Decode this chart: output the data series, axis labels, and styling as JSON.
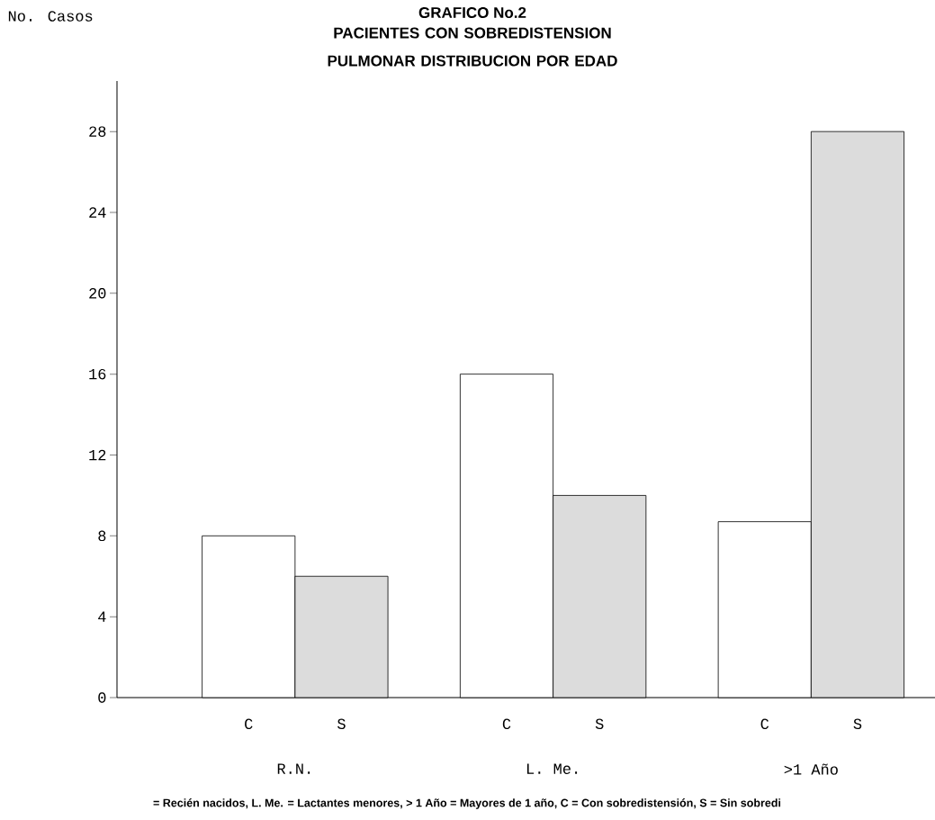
{
  "chart_data": {
    "type": "bar",
    "title": "GRAFICO No.2",
    "subtitle": "PACIENTES CON SOBREDISTENSION PULMONAR DISTRIBUCION POR EDAD",
    "ylabel": "No. Casos",
    "categories": [
      "R.N.",
      "L. Me.",
      ">1 Año"
    ],
    "series": [
      {
        "name": "C",
        "color": "#ffffff",
        "values": [
          8,
          16,
          8.7
        ]
      },
      {
        "name": "S",
        "color": "#dcdcdc",
        "values": [
          6,
          10,
          28
        ]
      }
    ],
    "ylim": [
      0,
      30.5
    ],
    "yticks": [
      0,
      4,
      8,
      12,
      16,
      20,
      24,
      28
    ],
    "grid": false,
    "annotations": [
      "= Recién nacidos, L. Me. = Lactantes menores, > 1 Año = Mayores de 1 año, C = Con sobredistensión, S = Sin sobredi"
    ]
  }
}
